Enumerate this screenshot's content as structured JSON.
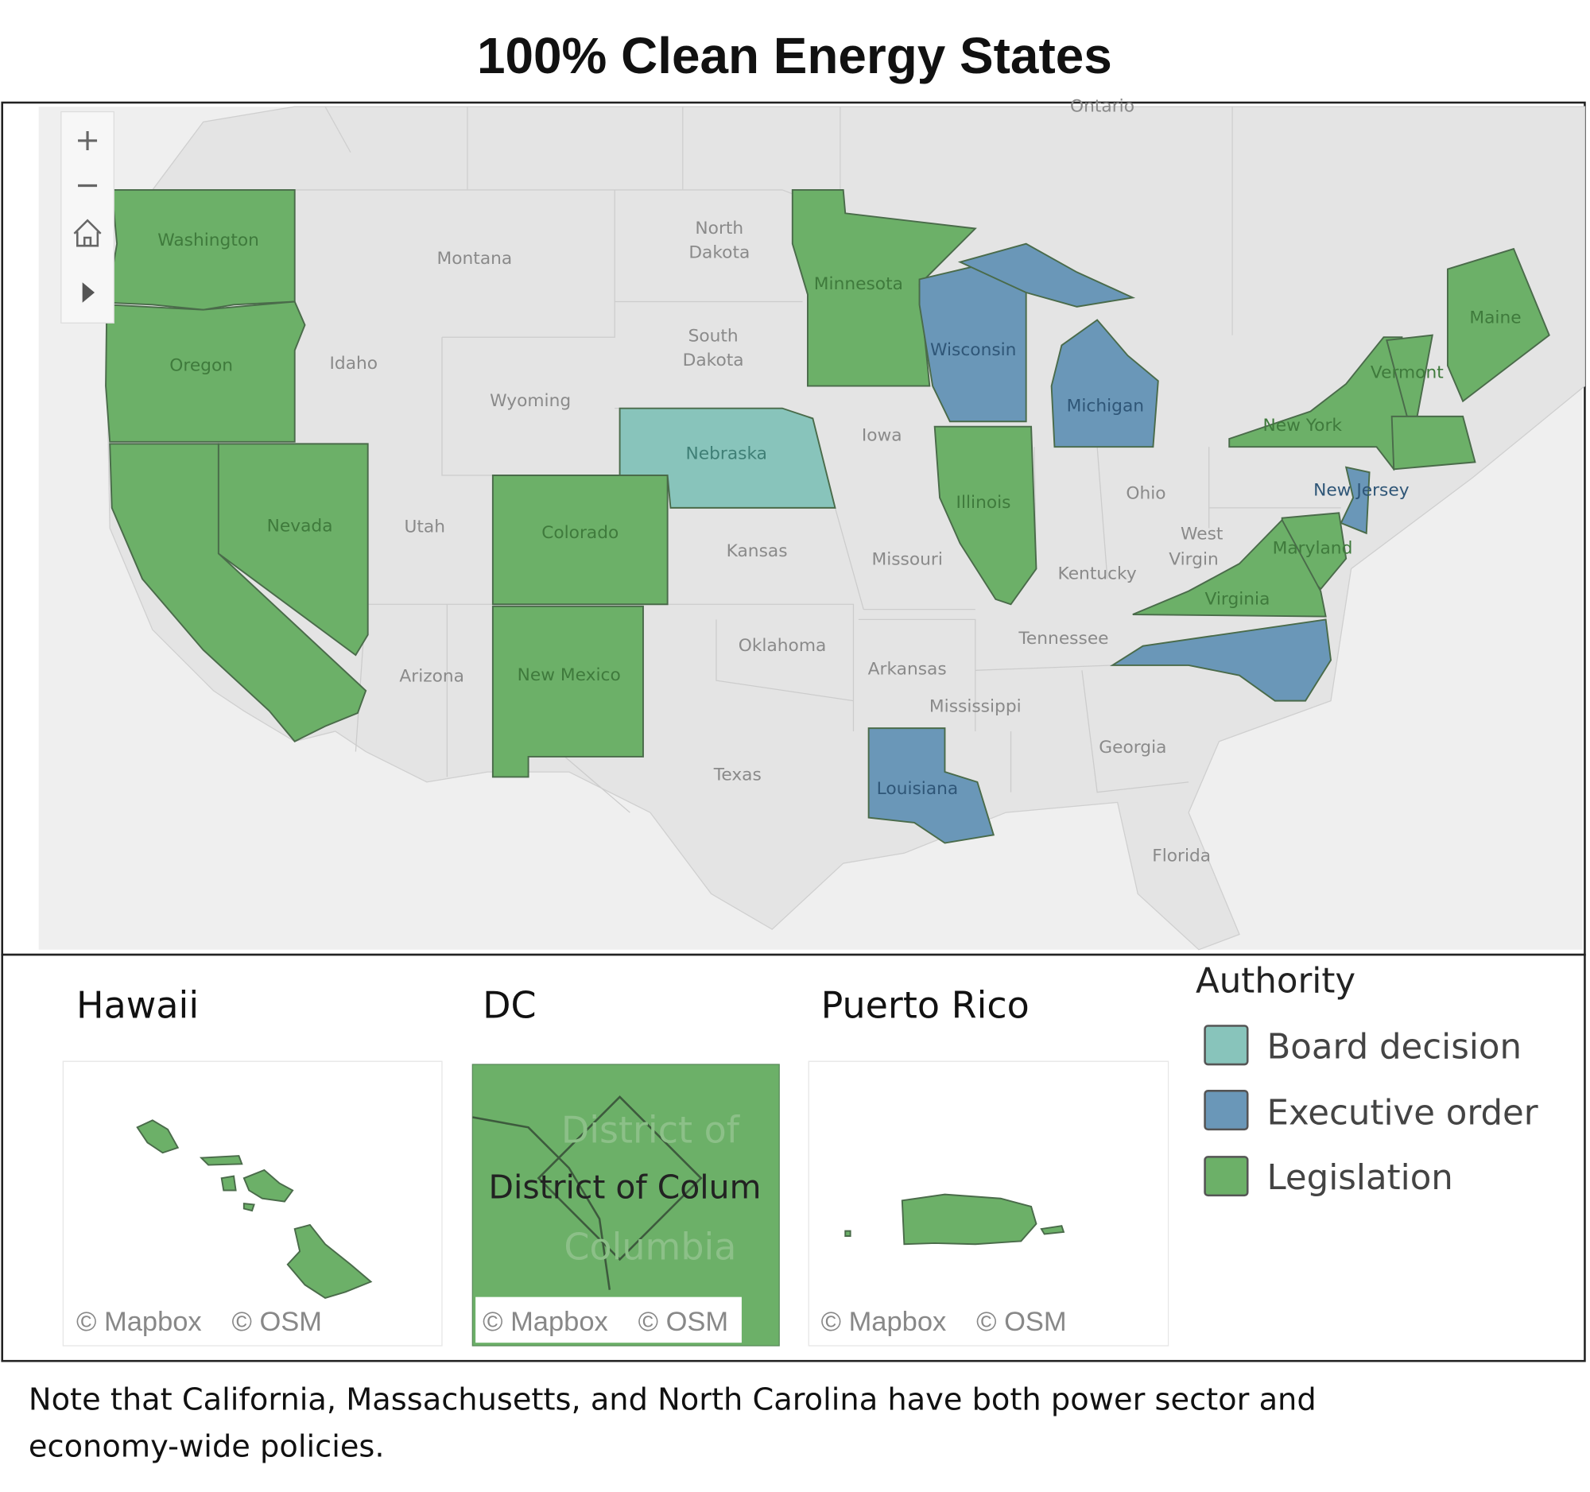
{
  "title": "100% Clean Energy States",
  "colors": {
    "Board decision": "#88c4bb",
    "Executive order": "#6a97b8",
    "Legislation": "#6cb068",
    "background_land": "#e4e4e4",
    "background_water": "#f3f3f3"
  },
  "map_controls": {
    "zoom_in": "+",
    "zoom_out": "−",
    "home_icon": "home-icon",
    "play_icon": "play-icon"
  },
  "states": [
    {
      "name": "Washington",
      "authority": "Legislation"
    },
    {
      "name": "Oregon",
      "authority": "Legislation"
    },
    {
      "name": "California",
      "authority": "Legislation"
    },
    {
      "name": "Nevada",
      "authority": "Legislation"
    },
    {
      "name": "Colorado",
      "authority": "Legislation"
    },
    {
      "name": "New Mexico",
      "authority": "Legislation"
    },
    {
      "name": "Nebraska",
      "authority": "Board decision"
    },
    {
      "name": "Minnesota",
      "authority": "Legislation"
    },
    {
      "name": "Wisconsin",
      "authority": "Executive order"
    },
    {
      "name": "Michigan",
      "authority": "Executive order"
    },
    {
      "name": "Illinois",
      "authority": "Legislation"
    },
    {
      "name": "New York",
      "authority": "Legislation"
    },
    {
      "name": "Vermont",
      "authority": "Legislation"
    },
    {
      "name": "Maine",
      "authority": "Legislation"
    },
    {
      "name": "Massachusetts",
      "authority": "Legislation"
    },
    {
      "name": "New Jersey",
      "authority": "Executive order"
    },
    {
      "name": "Maryland",
      "authority": "Legislation"
    },
    {
      "name": "Virginia",
      "authority": "Legislation"
    },
    {
      "name": "North Carolina",
      "authority": "Executive order"
    },
    {
      "name": "Louisiana",
      "authority": "Executive order"
    }
  ],
  "map_labels": {
    "ontario": "Ontario",
    "montana": "Montana",
    "north_dakota": [
      "North",
      "Dakota"
    ],
    "south_dakota": [
      "South",
      "Dakota"
    ],
    "idaho": "Idaho",
    "wyoming": "Wyoming",
    "utah": "Utah",
    "arizona": "Arizona",
    "kansas": "Kansas",
    "iowa": "Iowa",
    "missouri": "Missouri",
    "oklahoma": "Oklahoma",
    "texas": "Texas",
    "arkansas": "Arkansas",
    "mississippi": "Mississippi",
    "tennessee": "Tennessee",
    "kentucky": "Kentucky",
    "ohio": "Ohio",
    "west_virginia": [
      "West",
      "Virgin"
    ],
    "georgia": "Georgia",
    "florida": "Florida"
  },
  "insets": {
    "hawaii": {
      "title": "Hawaii",
      "authority": "Legislation"
    },
    "dc": {
      "title": "DC",
      "authority": "Legislation",
      "label": "District of Colum",
      "ghost_label": [
        "District of",
        "Columbia"
      ]
    },
    "puerto_rico": {
      "title": "Puerto Rico",
      "authority": "Legislation"
    },
    "credit_mapbox": "© Mapbox",
    "credit_osm": "© OSM"
  },
  "legend": {
    "title": "Authority",
    "items": [
      {
        "label": "Board decision",
        "color": "#88c4bb"
      },
      {
        "label": "Executive order",
        "color": "#6a97b8"
      },
      {
        "label": "Legislation",
        "color": "#6cb068"
      }
    ]
  },
  "note": {
    "line1": "Note that California, Massachusetts, and North Carolina have both power sector and",
    "line2": "economy-wide  policies."
  }
}
